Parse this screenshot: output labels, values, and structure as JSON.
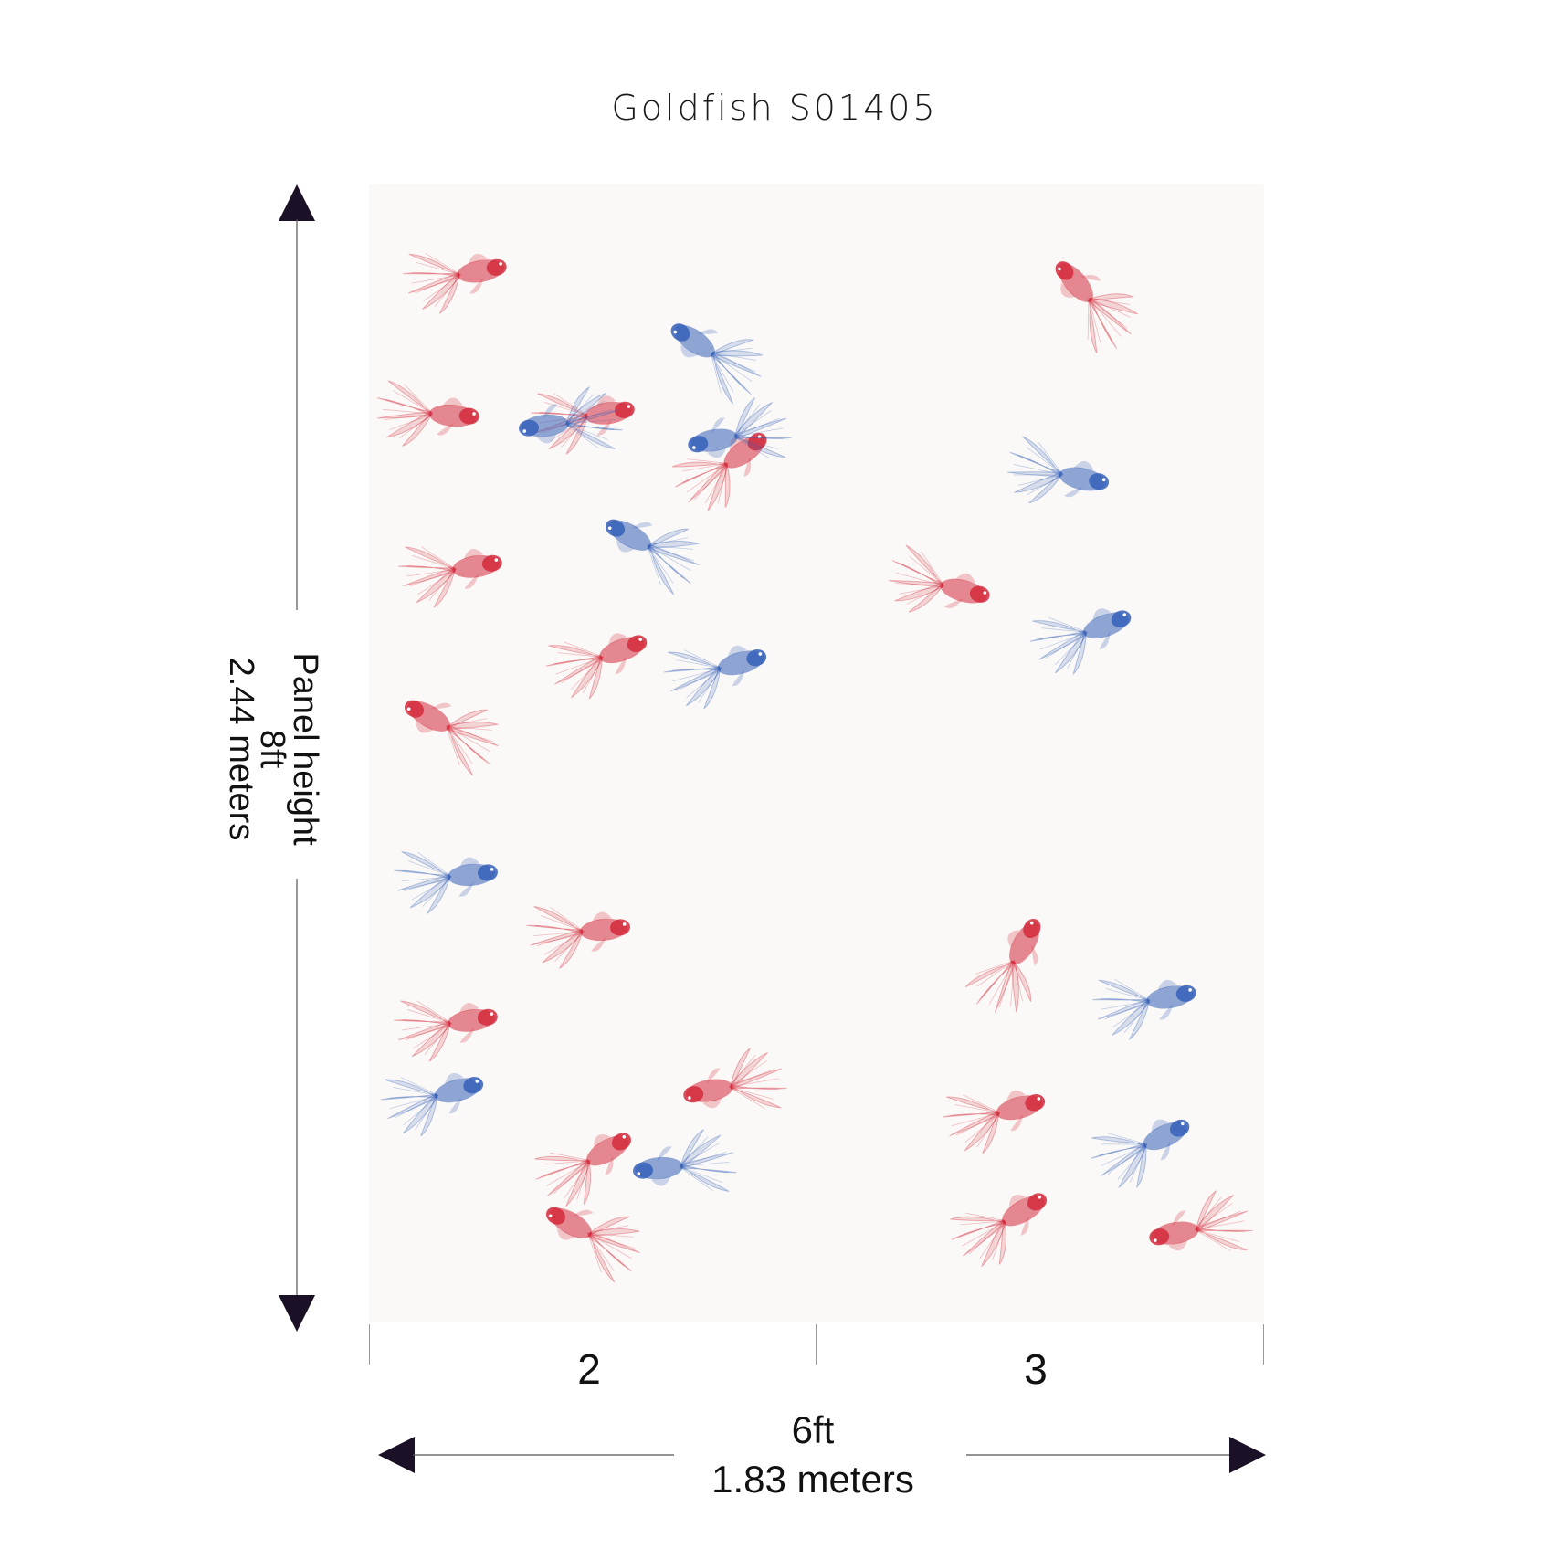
{
  "title": "Goldfish S01405",
  "panel": {
    "background": "#fbf9f7",
    "fish": [
      {
        "color": "red"
      },
      {
        "color": "red"
      },
      {
        "color": "blue"
      },
      {
        "color": "red"
      },
      {
        "color": "blue"
      },
      {
        "color": "red"
      },
      {
        "color": "blue"
      },
      {
        "color": "red"
      },
      {
        "color": "blue"
      },
      {
        "color": "red"
      },
      {
        "color": "blue"
      },
      {
        "color": "red"
      },
      {
        "color": "blue"
      },
      {
        "color": "red"
      },
      {
        "color": "red"
      },
      {
        "color": "blue"
      },
      {
        "color": "red"
      },
      {
        "color": "red"
      },
      {
        "color": "blue"
      },
      {
        "color": "red"
      },
      {
        "color": "blue"
      },
      {
        "color": "red"
      },
      {
        "color": "blue"
      },
      {
        "color": "red"
      },
      {
        "color": "blue"
      },
      {
        "color": "red"
      },
      {
        "color": "red"
      },
      {
        "color": "red"
      },
      {
        "color": "blue"
      },
      {
        "color": "red"
      },
      {
        "color": "red"
      }
    ]
  },
  "height": {
    "label": "Panel height",
    "imperial": "8ft",
    "metric": "2.44 meters"
  },
  "width": {
    "imperial": "6ft",
    "metric": "1.83 meters"
  },
  "panels": [
    {
      "number": "2"
    },
    {
      "number": "3"
    }
  ],
  "colors": {
    "red": "#d42a3c",
    "blue": "#3560b8",
    "arrow": "#1b1126"
  }
}
